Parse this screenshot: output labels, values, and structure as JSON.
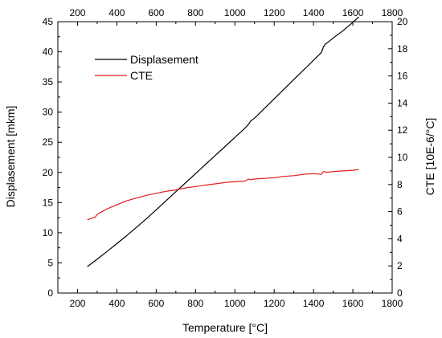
{
  "chart_data": {
    "type": "line",
    "xlabel": "Temperature [°C]",
    "ylabel_left": "Displasement [mkm]",
    "ylabel_right": "CTE [10E-6/°C]",
    "xlim": [
      100,
      1800
    ],
    "x_ticks": [
      200,
      400,
      600,
      800,
      1000,
      1200,
      1400,
      1600,
      1800
    ],
    "x_tick_labels": [
      "200",
      "400",
      "600",
      "800",
      "1000",
      "1200",
      "1400",
      "1600",
      "1800"
    ],
    "y_left_lim": [
      0,
      45
    ],
    "y_left_ticks": [
      0,
      5,
      10,
      15,
      20,
      25,
      30,
      35,
      40,
      45
    ],
    "y_left_tick_labels": [
      "0",
      "5",
      "10",
      "15",
      "20",
      "25",
      "30",
      "35",
      "40",
      "45"
    ],
    "y_right_lim": [
      0,
      20
    ],
    "y_right_ticks": [
      0,
      2,
      4,
      6,
      8,
      10,
      12,
      14,
      16,
      18,
      20
    ],
    "y_right_tick_labels": [
      "0",
      "2",
      "4",
      "6",
      "8",
      "10",
      "12",
      "14",
      "16",
      "18",
      "20"
    ],
    "grid": false,
    "legend_position": "top-left",
    "series": [
      {
        "name": "Displasement",
        "axis": "left",
        "color": "#000000",
        "x": [
          250,
          300,
          350,
          400,
          450,
          500,
          550,
          600,
          650,
          700,
          750,
          800,
          850,
          900,
          950,
          1000,
          1050,
          1070,
          1080,
          1100,
          1150,
          1200,
          1250,
          1300,
          1350,
          1400,
          1440,
          1450,
          1460,
          1470,
          1500,
          1550,
          1600,
          1630
        ],
        "values": [
          4.4,
          5.6,
          6.9,
          8.2,
          9.5,
          10.9,
          12.3,
          13.8,
          15.3,
          16.8,
          18.3,
          19.8,
          21.3,
          22.8,
          24.3,
          25.8,
          27.3,
          28.0,
          28.5,
          29.0,
          30.6,
          32.2,
          33.8,
          35.4,
          37.0,
          38.6,
          39.9,
          40.8,
          41.3,
          41.5,
          42.3,
          43.5,
          44.9,
          45.8
        ]
      },
      {
        "name": "CTE",
        "axis": "right",
        "color": "#e31a1c",
        "x": [
          250,
          270,
          290,
          300,
          350,
          400,
          450,
          500,
          550,
          600,
          650,
          700,
          750,
          800,
          850,
          900,
          950,
          1000,
          1050,
          1070,
          1080,
          1100,
          1150,
          1200,
          1250,
          1300,
          1350,
          1400,
          1440,
          1450,
          1470,
          1500,
          1550,
          1600,
          1630
        ],
        "values": [
          5.4,
          5.5,
          5.6,
          5.8,
          6.2,
          6.5,
          6.8,
          7.0,
          7.2,
          7.35,
          7.5,
          7.6,
          7.75,
          7.85,
          7.95,
          8.05,
          8.15,
          8.2,
          8.25,
          8.4,
          8.35,
          8.4,
          8.45,
          8.5,
          8.6,
          8.65,
          8.75,
          8.8,
          8.75,
          8.95,
          8.9,
          8.95,
          9.0,
          9.05,
          9.1
        ]
      }
    ]
  }
}
